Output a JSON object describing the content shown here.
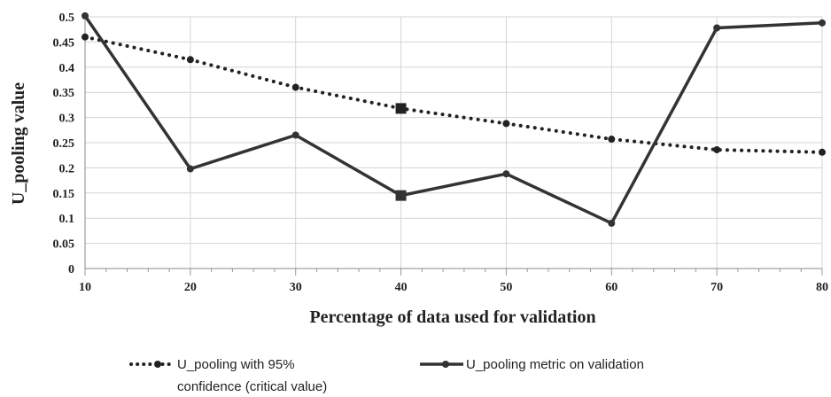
{
  "chart_data": {
    "type": "line",
    "xlabel": "Percentage of data used for validation",
    "ylabel": "U_pooling value",
    "x": [
      10,
      20,
      30,
      40,
      50,
      60,
      70,
      80
    ],
    "xlim": [
      10,
      80
    ],
    "ylim": [
      0,
      0.5
    ],
    "x_ticks": [
      "10",
      "20",
      "30",
      "40",
      "50",
      "60",
      "70",
      "80"
    ],
    "y_ticks": [
      "0",
      "0.05",
      "0.1",
      "0.15",
      "0.2",
      "0.25",
      "0.3",
      "0.35",
      "0.4",
      "0.45",
      "0.5"
    ],
    "grid": true,
    "legend_position": "bottom",
    "series": [
      {
        "name_lines": [
          "U_pooling with 95%",
          "confidence (critical value)"
        ],
        "style": "dotted",
        "color": "#222222",
        "values": [
          0.46,
          0.415,
          0.36,
          0.318,
          0.288,
          0.257,
          0.236,
          0.231
        ]
      },
      {
        "name_lines": [
          "U_pooling metric on validation"
        ],
        "style": "solid",
        "color": "#333333",
        "values": [
          0.502,
          0.198,
          0.265,
          0.145,
          0.188,
          0.09,
          0.478,
          0.488
        ]
      }
    ]
  }
}
